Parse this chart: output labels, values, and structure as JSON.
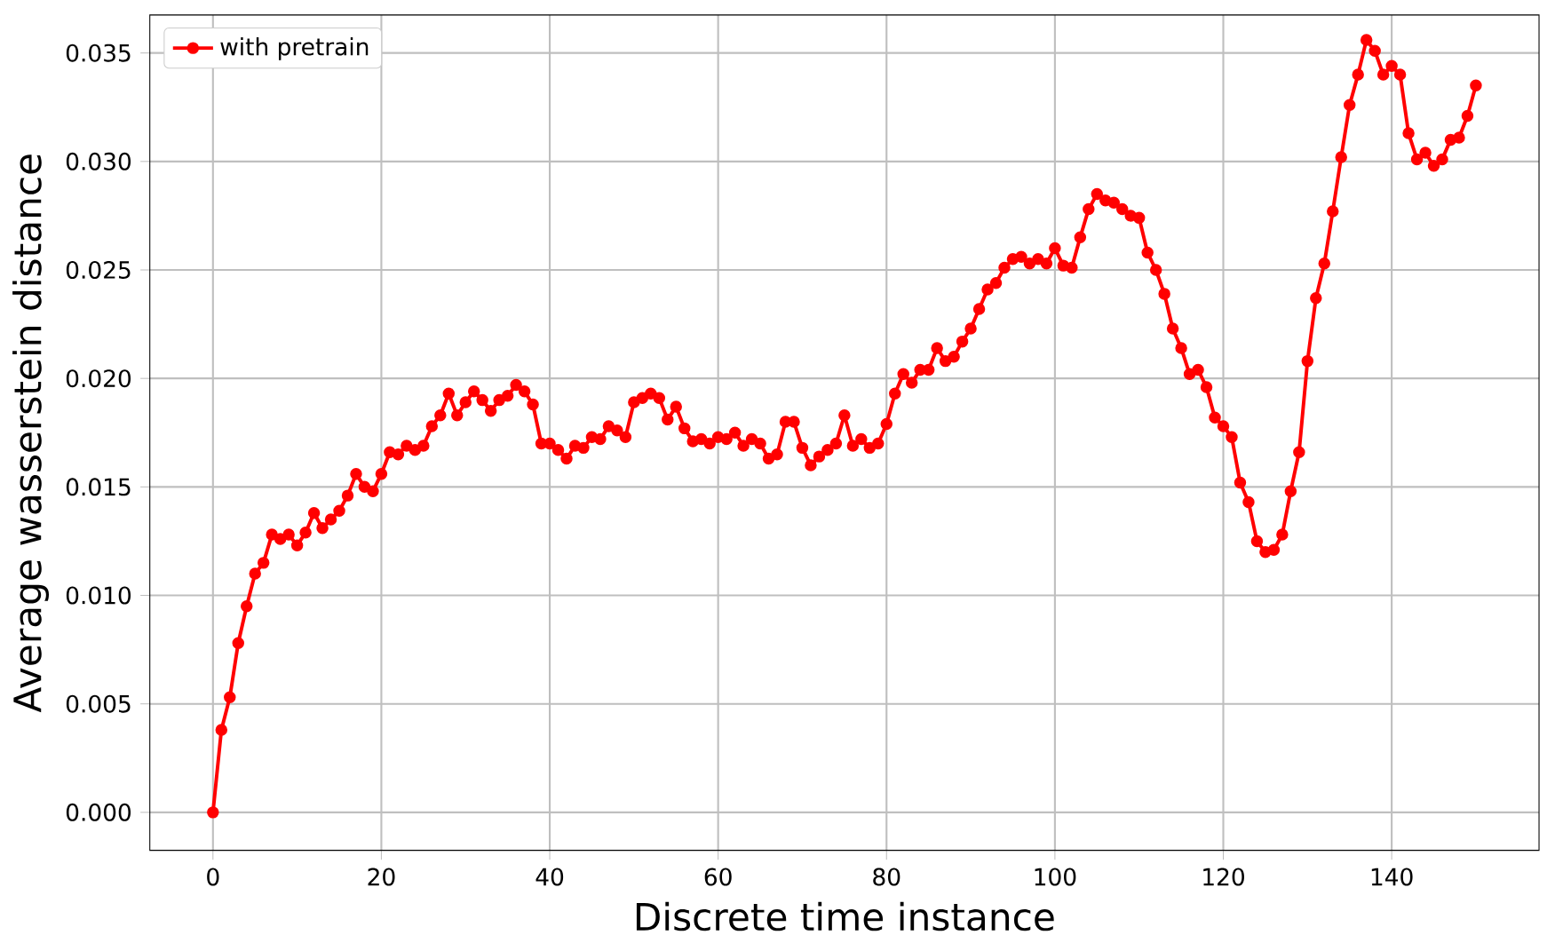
{
  "chart_data": {
    "type": "line",
    "xlabel": "Discrete time instance",
    "ylabel": "Average wasserstein distance",
    "x": [
      0,
      1,
      2,
      3,
      4,
      5,
      6,
      7,
      8,
      9,
      10,
      11,
      12,
      13,
      14,
      15,
      16,
      17,
      18,
      19,
      20,
      21,
      22,
      23,
      24,
      25,
      26,
      27,
      28,
      29,
      30,
      31,
      32,
      33,
      34,
      35,
      36,
      37,
      38,
      39,
      40,
      41,
      42,
      43,
      44,
      45,
      46,
      47,
      48,
      49,
      50,
      51,
      52,
      53,
      54,
      55,
      56,
      57,
      58,
      59,
      60,
      61,
      62,
      63,
      64,
      65,
      66,
      67,
      68,
      69,
      70,
      71,
      72,
      73,
      74,
      75,
      76,
      77,
      78,
      79,
      80,
      81,
      82,
      83,
      84,
      85,
      86,
      87,
      88,
      89,
      90,
      91,
      92,
      93,
      94,
      95,
      96,
      97,
      98,
      99,
      100,
      101,
      102,
      103,
      104,
      105,
      106,
      107,
      108,
      109,
      110,
      111,
      112,
      113,
      114,
      115,
      116,
      117,
      118,
      119,
      120,
      121,
      122,
      123,
      124,
      125,
      126,
      127,
      128,
      129,
      130,
      131,
      132,
      133,
      134,
      135,
      136,
      137,
      138,
      139,
      140,
      141,
      142,
      143,
      144,
      145,
      146,
      147,
      148,
      149,
      150
    ],
    "series": [
      {
        "name": "with pretrain",
        "color": "#ff0000",
        "values": [
          0.0,
          0.0038,
          0.0053,
          0.0078,
          0.0095,
          0.011,
          0.0115,
          0.0128,
          0.0126,
          0.0128,
          0.0123,
          0.0129,
          0.0138,
          0.0131,
          0.0135,
          0.0139,
          0.0146,
          0.0156,
          0.015,
          0.0148,
          0.0156,
          0.0166,
          0.0165,
          0.0169,
          0.0167,
          0.0169,
          0.0178,
          0.0183,
          0.0193,
          0.0183,
          0.0189,
          0.0194,
          0.019,
          0.0185,
          0.019,
          0.0192,
          0.0197,
          0.0194,
          0.0188,
          0.017,
          0.017,
          0.0167,
          0.0163,
          0.0169,
          0.0168,
          0.0173,
          0.0172,
          0.0178,
          0.0176,
          0.0173,
          0.0189,
          0.0191,
          0.0193,
          0.0191,
          0.0181,
          0.0187,
          0.0177,
          0.0171,
          0.0172,
          0.017,
          0.0173,
          0.0172,
          0.0175,
          0.0169,
          0.0172,
          0.017,
          0.0163,
          0.0165,
          0.018,
          0.018,
          0.0168,
          0.016,
          0.0164,
          0.0167,
          0.017,
          0.0183,
          0.0169,
          0.0172,
          0.0168,
          0.017,
          0.0179,
          0.0193,
          0.0202,
          0.0198,
          0.0204,
          0.0204,
          0.0214,
          0.0208,
          0.021,
          0.0217,
          0.0223,
          0.0232,
          0.0241,
          0.0244,
          0.0251,
          0.0255,
          0.0256,
          0.0253,
          0.0255,
          0.0253,
          0.026,
          0.0252,
          0.0251,
          0.0265,
          0.0278,
          0.0285,
          0.0282,
          0.0281,
          0.0278,
          0.0275,
          0.0274,
          0.0258,
          0.025,
          0.0239,
          0.0223,
          0.0214,
          0.0202,
          0.0204,
          0.0196,
          0.0182,
          0.0178,
          0.0173,
          0.0152,
          0.0143,
          0.0125,
          0.012,
          0.0121,
          0.0128,
          0.0148,
          0.0166,
          0.0208,
          0.0237,
          0.0253,
          0.0277,
          0.0302,
          0.0326,
          0.034,
          0.0356,
          0.0351,
          0.034,
          0.0344,
          0.034,
          0.0313,
          0.0301,
          0.0304,
          0.0298,
          0.0301,
          0.031,
          0.0311,
          0.0321,
          0.0335
        ]
      }
    ],
    "xlim": [
      -7.5,
      157.5
    ],
    "xticks": [
      0,
      20,
      40,
      60,
      80,
      100,
      120,
      140
    ],
    "ylim": [
      -0.00175,
      0.03675
    ],
    "yticks": [
      {
        "value": 0.0,
        "label": "0.000"
      },
      {
        "value": 0.005,
        "label": "0.005"
      },
      {
        "value": 0.01,
        "label": "0.010"
      },
      {
        "value": 0.015,
        "label": "0.015"
      },
      {
        "value": 0.02,
        "label": "0.020"
      },
      {
        "value": 0.025,
        "label": "0.025"
      },
      {
        "value": 0.03,
        "label": "0.030"
      },
      {
        "value": 0.035,
        "label": "0.035"
      }
    ],
    "grid": true,
    "legend": "top left",
    "marker": "circle",
    "line_style": "solid"
  }
}
